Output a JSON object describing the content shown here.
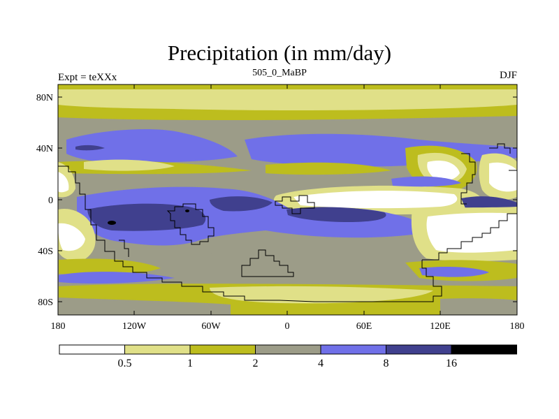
{
  "title": "Precipitation (in mm/day)",
  "experiment_label": "Expt = teXXx",
  "period_label": "505_0_MaBP",
  "season_label": "DJF",
  "latitude_labels": [
    "80N",
    "40N",
    "0",
    "40S",
    "80S"
  ],
  "longitude_labels": [
    "180",
    "120W",
    "60W",
    "0",
    "60E",
    "120E",
    "180"
  ],
  "colorbar": {
    "labels": [
      "0.5",
      "1",
      "2",
      "4",
      "8",
      "16"
    ],
    "colors": [
      "#ffffff",
      "#e0e088",
      "#bdbd1e",
      "#9c9c88",
      "#7070e8",
      "#40408e",
      "#000000"
    ]
  }
}
